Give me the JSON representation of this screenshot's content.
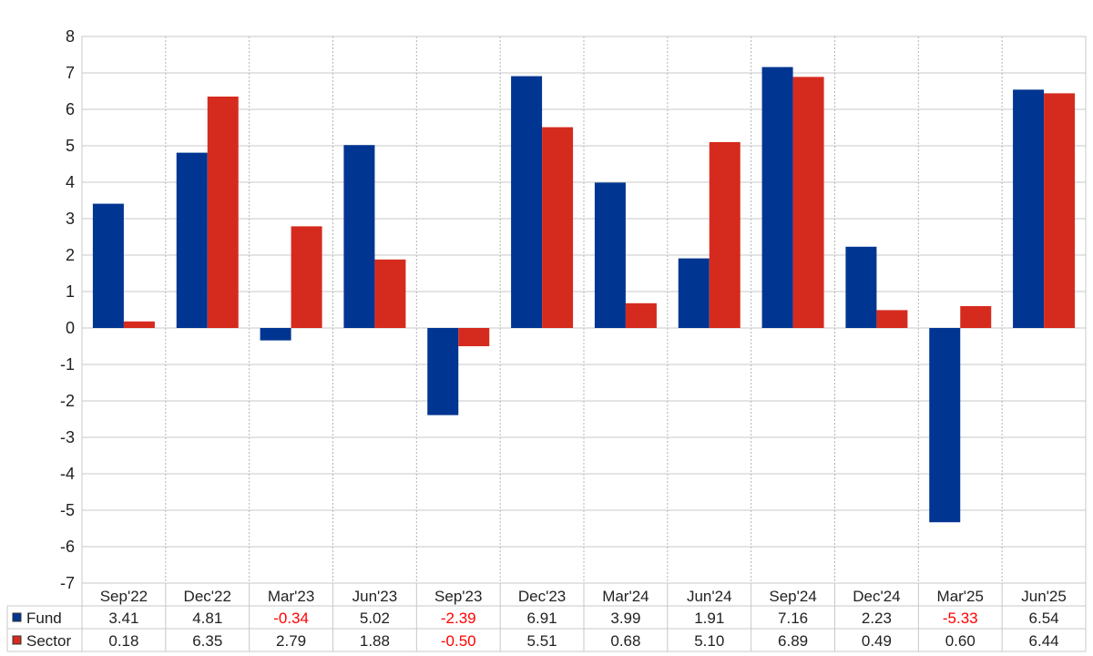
{
  "chart_data": {
    "type": "bar",
    "categories": [
      "Sep'22",
      "Dec'22",
      "Mar'23",
      "Jun'23",
      "Sep'23",
      "Dec'23",
      "Mar'24",
      "Jun'24",
      "Sep'24",
      "Dec'24",
      "Mar'25",
      "Jun'25"
    ],
    "series": [
      {
        "name": "Fund",
        "color": "#003591",
        "values": [
          3.41,
          4.81,
          -0.34,
          5.02,
          -2.39,
          6.91,
          3.99,
          1.91,
          7.16,
          2.23,
          -5.33,
          6.54
        ],
        "labels": [
          "3.41",
          "4.81",
          "-0.34",
          "5.02",
          "-2.39",
          "6.91",
          "3.99",
          "1.91",
          "7.16",
          "2.23",
          "-5.33",
          "6.54"
        ]
      },
      {
        "name": "Sector",
        "color": "#d52b1e",
        "values": [
          0.18,
          6.35,
          2.79,
          1.88,
          -0.5,
          5.51,
          0.68,
          5.1,
          6.89,
          0.49,
          0.6,
          6.44
        ],
        "labels": [
          "0.18",
          "6.35",
          "2.79",
          "1.88",
          "-0.50",
          "5.51",
          "0.68",
          "5.10",
          "6.89",
          "0.49",
          "0.60",
          "6.44"
        ]
      }
    ],
    "ylim": [
      -7,
      8
    ],
    "yticks": [
      "8",
      "7",
      "6",
      "5",
      "4",
      "3",
      "2",
      "1",
      "0",
      "-1",
      "-2",
      "-3",
      "-4",
      "-5",
      "-6",
      "-7"
    ],
    "grid": true,
    "negative_label_color": "#ff0000",
    "legend": "data table below chart",
    "title": "",
    "xlabel": "",
    "ylabel": ""
  }
}
